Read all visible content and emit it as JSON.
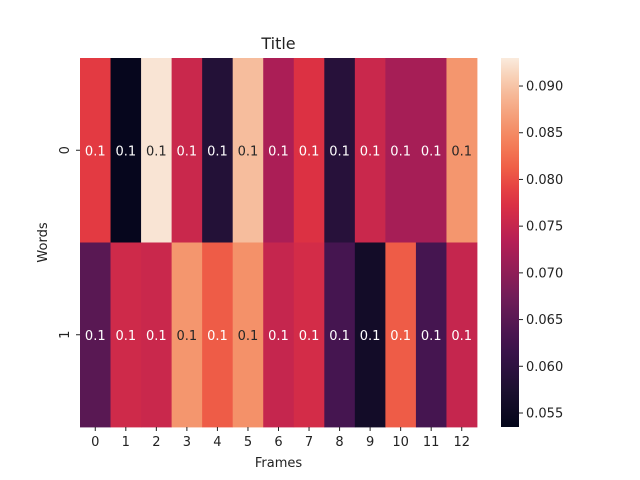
{
  "chart_data": {
    "type": "heatmap",
    "title": "Title",
    "xlabel": "Frames",
    "ylabel": "Words",
    "x_categories": [
      "0",
      "1",
      "2",
      "3",
      "4",
      "5",
      "6",
      "7",
      "8",
      "9",
      "10",
      "11",
      "12"
    ],
    "y_categories": [
      "0",
      "1"
    ],
    "values": [
      [
        0.0785,
        0.054,
        0.0925,
        0.0755,
        0.0585,
        0.0895,
        0.0725,
        0.0775,
        0.059,
        0.0755,
        0.072,
        0.072,
        0.086
      ],
      [
        0.065,
        0.076,
        0.0755,
        0.086,
        0.081,
        0.0855,
        0.075,
        0.0765,
        0.063,
        0.056,
        0.081,
        0.063,
        0.075
      ]
    ],
    "cell_labels": [
      [
        "0.1",
        "0.1",
        "0.1",
        "0.1",
        "0.1",
        "0.1",
        "0.1",
        "0.1",
        "0.1",
        "0.1",
        "0.1",
        "0.1",
        "0.1"
      ],
      [
        "0.1",
        "0.1",
        "0.1",
        "0.1",
        "0.1",
        "0.1",
        "0.1",
        "0.1",
        "0.1",
        "0.1",
        "0.1",
        "0.1",
        "0.1"
      ]
    ],
    "colorbar": {
      "range": [
        0.0535,
        0.093
      ],
      "ticks": [
        0.055,
        0.06,
        0.065,
        0.07,
        0.075,
        0.08,
        0.085,
        0.09
      ],
      "tick_labels": [
        "0.055",
        "0.060",
        "0.065",
        "0.070",
        "0.075",
        "0.080",
        "0.085",
        "0.090"
      ]
    },
    "colormap": "rocket",
    "grid": false
  }
}
